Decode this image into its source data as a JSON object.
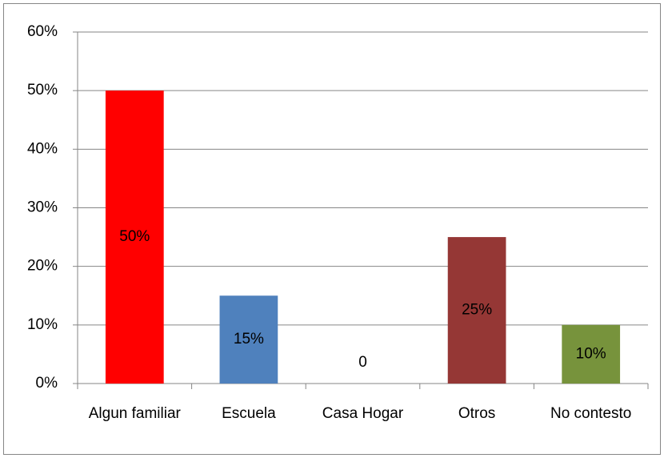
{
  "chart_data": {
    "type": "bar",
    "categories": [
      "Algun familiar",
      "Escuela",
      "Casa Hogar",
      "Otros",
      "No contesto"
    ],
    "values": [
      50,
      15,
      0,
      25,
      10
    ],
    "value_labels": [
      "50%",
      "15%",
      "0",
      "25%",
      "10%"
    ],
    "colors": [
      "#ff0000",
      "#4f81bd",
      "#9bbb59",
      "#953735",
      "#77933c"
    ],
    "ylim": [
      0,
      60
    ],
    "yticks": [
      {
        "value": 0,
        "label": "0%"
      },
      {
        "value": 10,
        "label": "10%"
      },
      {
        "value": 20,
        "label": "20%"
      },
      {
        "value": 30,
        "label": "30%"
      },
      {
        "value": 40,
        "label": "40%"
      },
      {
        "value": 50,
        "label": "50%"
      },
      {
        "value": 60,
        "label": "60%"
      }
    ],
    "grid": true
  }
}
